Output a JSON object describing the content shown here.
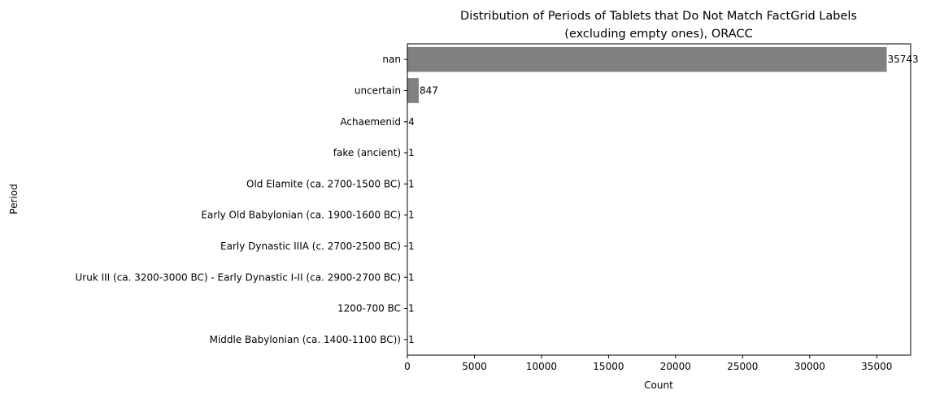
{
  "chart_data": {
    "type": "bar",
    "orientation": "horizontal",
    "title_lines": [
      "Distribution of Periods of Tablets that Do Not Match FactGrid Labels",
      "(excluding empty ones), ORACC"
    ],
    "xlabel": "Count",
    "ylabel": "Period",
    "xlim": [
      0,
      37530
    ],
    "xticks": [
      0,
      5000,
      10000,
      15000,
      20000,
      25000,
      30000,
      35000
    ],
    "xtick_labels": [
      "0",
      "5000",
      "10000",
      "15000",
      "20000",
      "25000",
      "30000",
      "35000"
    ],
    "categories": [
      "nan",
      "uncertain",
      "Achaemenid",
      "fake (ancient)",
      "Old Elamite (ca. 2700-1500 BC)",
      "Early Old Babylonian (ca. 1900-1600 BC)",
      "Early Dynastic IIIA (c. 2700-2500 BC)",
      "Uruk III (ca. 3200-3000 BC) - Early Dynastic I-II (ca. 2900-2700 BC)",
      "1200-700 BC",
      "Middle Babylonian (ca. 1400-1100 BC))"
    ],
    "values": [
      35743,
      847,
      4,
      1,
      1,
      1,
      1,
      1,
      1,
      1
    ],
    "value_labels": [
      "35743",
      "847",
      "4",
      "1",
      "1",
      "1",
      "1",
      "1",
      "1",
      "1"
    ],
    "bar_color": "#808080",
    "grid": false,
    "legend": "none"
  }
}
